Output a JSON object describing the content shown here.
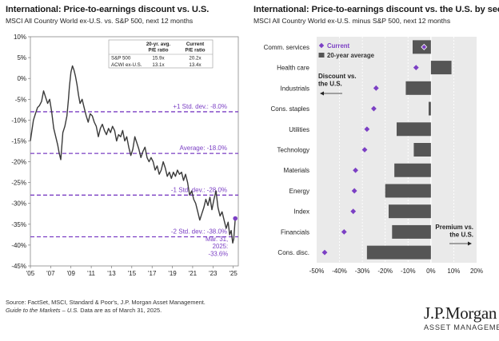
{
  "left_panel": {
    "title": "International: Price-to-earnings discount vs. U.S.",
    "subtitle": "MSCI All Country World ex-U.S. vs. S&P 500, next 12 months"
  },
  "right_panel": {
    "title": "International: Price-to-earnings discount vs. the U.S. by sector",
    "subtitle": "MSCI All Country World ex-U.S. minus S&P 500, next 12 months"
  },
  "footer": {
    "source": "Source: FactSet, MSCI, Standard & Poor's, J.P. Morgan Asset Management.",
    "guide_italic": "Guide to the Markets – U.S.",
    "guide_rest": " Data are as of March 31, 2025."
  },
  "logo": {
    "brand": "J.P.Morgan",
    "sub": "ASSET MANAGEMENT"
  },
  "colors": {
    "line": "#3a3a3a",
    "purple": "#7b3fc4",
    "bar": "#555555",
    "panel_bg": "#eaeaea",
    "grid": "#ffffff"
  },
  "chart_data": [
    {
      "type": "line",
      "title": "International: Price-to-earnings discount vs. U.S.",
      "subtitle": "MSCI All Country World ex-U.S. vs. S&P 500, next 12 months",
      "xlabel": "",
      "ylabel": "",
      "xlim": [
        2005,
        2025.5
      ],
      "ylim": [
        -45,
        10
      ],
      "y_ticks": [
        10,
        5,
        0,
        -5,
        -10,
        -15,
        -20,
        -25,
        -30,
        -35,
        -40,
        -45
      ],
      "y_tick_labels": [
        "10%",
        "5%",
        "0%",
        "-5%",
        "-10%",
        "-15%",
        "-20%",
        "-25%",
        "-30%",
        "-35%",
        "-40%",
        "-45%"
      ],
      "x_ticks": [
        2005,
        2007,
        2009,
        2011,
        2013,
        2015,
        2017,
        2019,
        2021,
        2023,
        2025
      ],
      "x_tick_labels": [
        "'05",
        "'07",
        "'09",
        "'11",
        "'13",
        "'15",
        "'17",
        "'19",
        "'21",
        "'23",
        "'25"
      ],
      "reference_lines": [
        {
          "value": -8.0,
          "label": "+1 Std. dev.: -8.0%"
        },
        {
          "value": -18.0,
          "label": "Average: -18.0%"
        },
        {
          "value": -28.0,
          "label": "-1 Std. dev.: -28.0%"
        },
        {
          "value": -38.0,
          "label": "-2 Std. dev.: -38.0%"
        }
      ],
      "endpoint": {
        "x": 2025.2,
        "y": -33.6,
        "label_lines": [
          "Mar. 31,",
          "2025:",
          "-33.6%"
        ]
      },
      "series": [
        {
          "name": "MSCI ACWI ex-U.S. P/E discount vs. S&P 500",
          "x": [
            2005.0,
            2005.15,
            2005.3,
            2005.5,
            2005.7,
            2005.9,
            2006.1,
            2006.3,
            2006.5,
            2006.7,
            2006.9,
            2007.1,
            2007.3,
            2007.5,
            2007.7,
            2007.85,
            2008.0,
            2008.2,
            2008.4,
            2008.6,
            2008.75,
            2008.85,
            2009.0,
            2009.15,
            2009.3,
            2009.45,
            2009.6,
            2009.75,
            2009.9,
            2010.1,
            2010.3,
            2010.5,
            2010.7,
            2010.9,
            2011.1,
            2011.3,
            2011.5,
            2011.7,
            2011.9,
            2012.1,
            2012.3,
            2012.5,
            2012.7,
            2012.9,
            2013.1,
            2013.3,
            2013.5,
            2013.7,
            2013.9,
            2014.1,
            2014.3,
            2014.5,
            2014.7,
            2014.9,
            2015.1,
            2015.3,
            2015.5,
            2015.7,
            2015.9,
            2016.1,
            2016.3,
            2016.5,
            2016.7,
            2016.9,
            2017.1,
            2017.3,
            2017.5,
            2017.7,
            2017.9,
            2018.1,
            2018.3,
            2018.5,
            2018.7,
            2018.9,
            2019.1,
            2019.3,
            2019.5,
            2019.7,
            2019.9,
            2020.1,
            2020.3,
            2020.5,
            2020.7,
            2020.9,
            2021.1,
            2021.3,
            2021.5,
            2021.7,
            2021.9,
            2022.1,
            2022.3,
            2022.5,
            2022.7,
            2022.9,
            2023.1,
            2023.3,
            2023.5,
            2023.7,
            2023.9,
            2024.1,
            2024.3,
            2024.5,
            2024.65,
            2024.8,
            2024.95,
            2025.05,
            2025.2
          ],
          "y": [
            -15.0,
            -12.5,
            -10.0,
            -8.5,
            -7.0,
            -6.5,
            -5.5,
            -3.0,
            -4.5,
            -6.0,
            -5.0,
            -8.0,
            -12.0,
            -14.0,
            -16.0,
            -18.0,
            -19.5,
            -13.0,
            -11.5,
            -9.0,
            -5.0,
            -2.0,
            1.5,
            3.0,
            2.0,
            0.5,
            -1.5,
            -4.0,
            -6.0,
            -5.0,
            -7.0,
            -9.0,
            -10.5,
            -8.5,
            -9.0,
            -10.5,
            -11.5,
            -14.0,
            -12.0,
            -11.0,
            -12.5,
            -13.5,
            -12.0,
            -13.0,
            -11.5,
            -12.5,
            -15.0,
            -13.5,
            -14.0,
            -12.5,
            -15.0,
            -14.0,
            -16.5,
            -18.5,
            -17.0,
            -14.0,
            -15.5,
            -17.0,
            -19.0,
            -17.5,
            -16.5,
            -19.0,
            -20.0,
            -19.0,
            -20.0,
            -22.0,
            -21.0,
            -23.0,
            -22.0,
            -20.0,
            -21.5,
            -23.5,
            -22.5,
            -24.0,
            -22.5,
            -23.5,
            -22.0,
            -23.0,
            -22.5,
            -24.5,
            -23.0,
            -25.0,
            -28.0,
            -27.0,
            -29.0,
            -30.0,
            -32.0,
            -34.0,
            -32.5,
            -31.0,
            -29.0,
            -30.5,
            -28.5,
            -31.5,
            -29.0,
            -27.0,
            -31.0,
            -33.0,
            -32.0,
            -34.0,
            -36.0,
            -34.5,
            -37.5,
            -36.5,
            -39.5,
            -38.5,
            -33.6
          ]
        }
      ],
      "legend_table": {
        "columns": [
          "",
          "20-yr. avg. P/E ratio",
          "Current P/E ratio"
        ],
        "header_lines": [
          [
            "",
            ""
          ],
          [
            "20-yr. avg.",
            "P/E ratio"
          ],
          [
            "Current",
            "P/E ratio"
          ]
        ],
        "rows": [
          [
            "S&P 500",
            "15.9x",
            "20.2x"
          ],
          [
            "ACWI ex-U.S.",
            "13.1x",
            "13.4x"
          ]
        ]
      }
    },
    {
      "type": "bar",
      "title": "International: Price-to-earnings discount vs. the U.S. by sector",
      "subtitle": "MSCI All Country World ex-U.S. minus S&P 500, next 12 months",
      "xlabel": "",
      "ylabel": "",
      "xlim": [
        -50,
        20
      ],
      "x_ticks": [
        -50,
        -40,
        -30,
        -20,
        -10,
        0,
        10,
        20
      ],
      "x_tick_labels": [
        "-50%",
        "-40%",
        "-30%",
        "-20%",
        "-10%",
        "0%",
        "10%",
        "20%"
      ],
      "categories": [
        "Comm. services",
        "Health care",
        "Industrials",
        "Cons. staples",
        "Utilities",
        "Technology",
        "Materials",
        "Energy",
        "Index",
        "Financials",
        "Cons. disc."
      ],
      "series": [
        {
          "name": "20-year average",
          "kind": "bar",
          "values": [
            -8.0,
            9.0,
            -11.0,
            -1.0,
            -15.0,
            -7.5,
            -16.0,
            -20.0,
            -18.5,
            -17.0,
            -28.0
          ]
        },
        {
          "name": "Current",
          "kind": "marker",
          "values": [
            -3.0,
            -6.5,
            -24.0,
            -25.0,
            -28.0,
            -29.0,
            -33.0,
            -33.5,
            -34.0,
            -38.0,
            -46.5
          ]
        }
      ],
      "legend": {
        "placement": "top-left",
        "current_label": "Current",
        "average_label": "20-year average"
      },
      "annotations": {
        "discount": [
          "Discount  vs.",
          "the U.S."
        ],
        "premium": [
          "Premium  vs.",
          "the U.S."
        ]
      }
    }
  ]
}
